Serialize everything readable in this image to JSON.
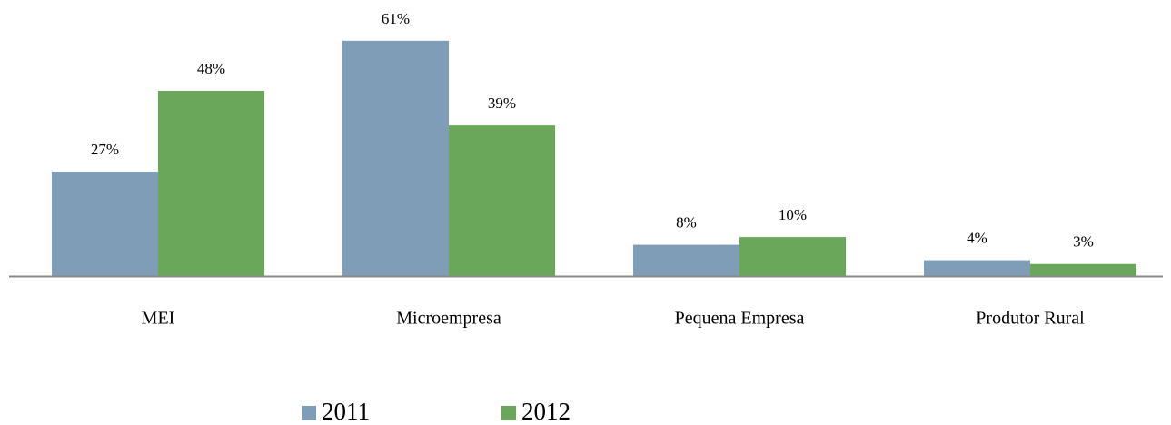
{
  "chart_data": {
    "type": "bar",
    "categories": [
      "MEI",
      "Microempresa",
      "Pequena Empresa",
      "Produtor Rural"
    ],
    "series": [
      {
        "name": "2011",
        "color": "#7f9db6",
        "values": [
          27,
          61,
          8,
          4
        ],
        "value_labels": [
          "27%",
          "61%",
          "8%",
          "4%"
        ]
      },
      {
        "name": "2012",
        "color": "#6ba75a",
        "values": [
          48,
          39,
          10,
          3
        ],
        "value_labels": [
          "48%",
          "39%",
          "10%",
          "3%"
        ]
      }
    ]
  }
}
